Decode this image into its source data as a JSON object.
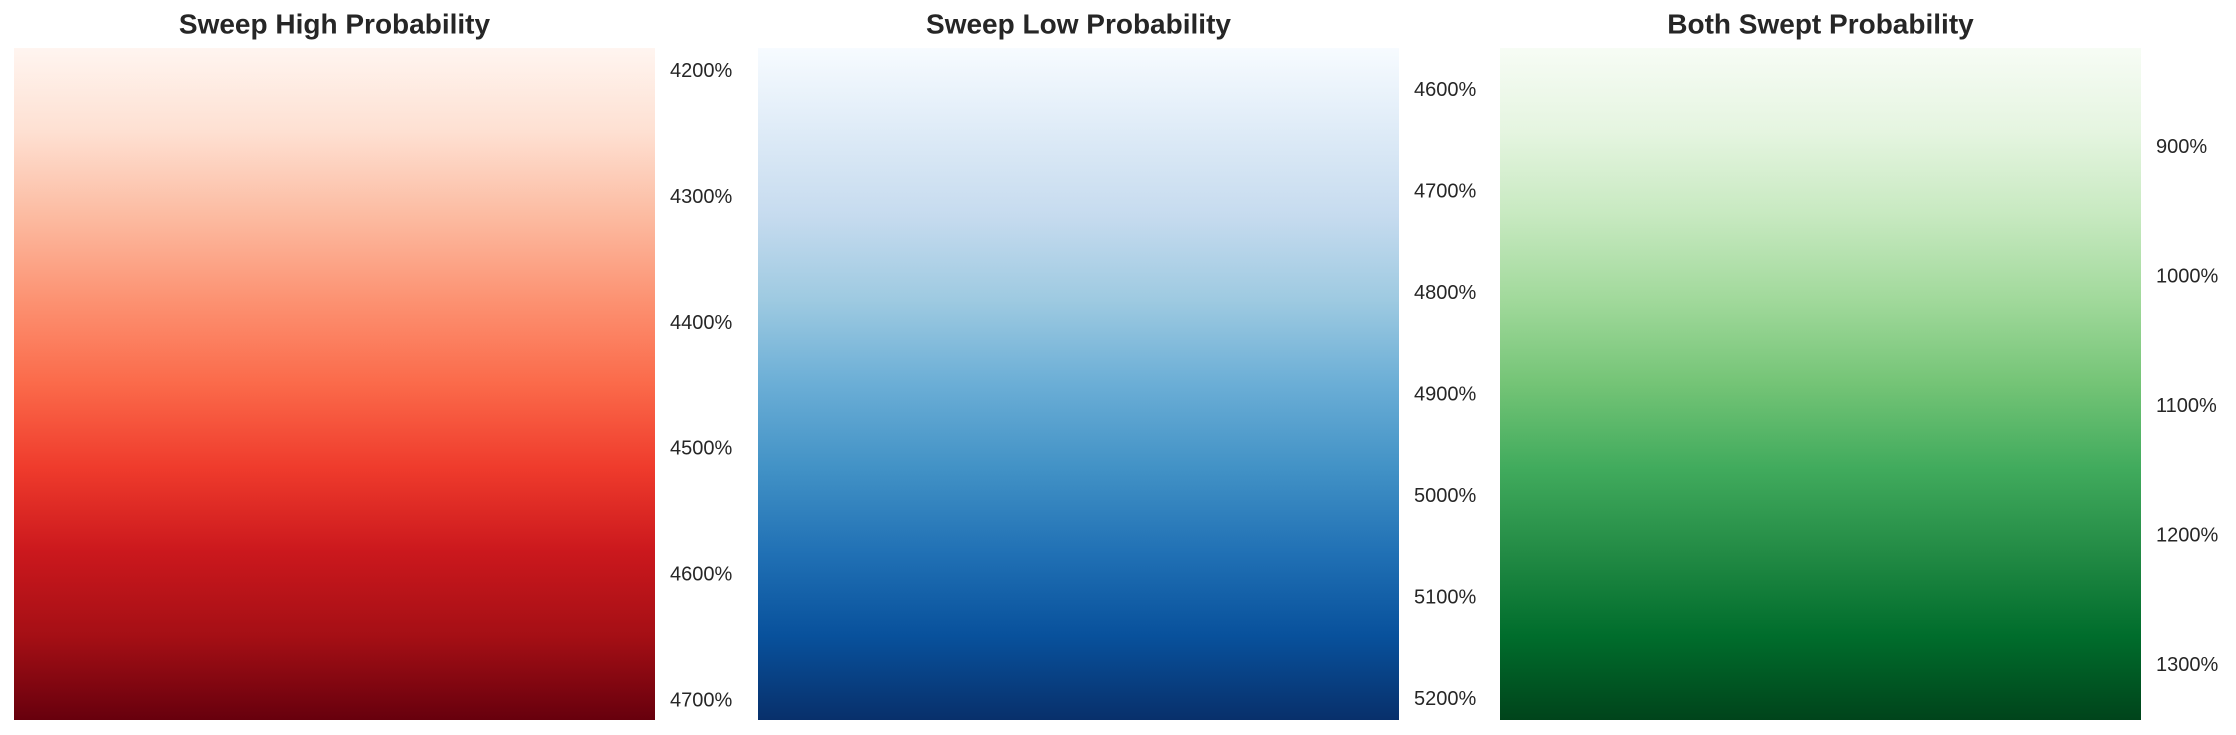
{
  "chart_data": [
    {
      "type": "colorbar",
      "title": "Sweep High Probability",
      "ylim": [
        4715,
        4181
      ],
      "yticks": [
        {
          "value": 4200,
          "label": "4200%"
        },
        {
          "value": 4300,
          "label": "4300%"
        },
        {
          "value": 4400,
          "label": "4400%"
        },
        {
          "value": 4500,
          "label": "4500%"
        },
        {
          "value": 4600,
          "label": "4600%"
        },
        {
          "value": 4700,
          "label": "4700%"
        }
      ],
      "colors": [
        "#fff5f0",
        "#fee0d2",
        "#fcbba1",
        "#fc9272",
        "#fb6a4a",
        "#ef3b2c",
        "#cb181d",
        "#a50f15",
        "#67000d"
      ]
    },
    {
      "type": "colorbar",
      "title": "Sweep Low Probability",
      "ylim": [
        5220,
        4558
      ],
      "yticks": [
        {
          "value": 4600,
          "label": "4600%"
        },
        {
          "value": 4700,
          "label": "4700%"
        },
        {
          "value": 4800,
          "label": "4800%"
        },
        {
          "value": 4900,
          "label": "4900%"
        },
        {
          "value": 5000,
          "label": "5000%"
        },
        {
          "value": 5100,
          "label": "5100%"
        },
        {
          "value": 5200,
          "label": "5200%"
        }
      ],
      "colors": [
        "#f7fbff",
        "#deebf7",
        "#c6dbef",
        "#9ecae1",
        "#6baed6",
        "#4292c6",
        "#2171b5",
        "#08519c",
        "#08306b"
      ]
    },
    {
      "type": "colorbar",
      "title": "Both Swept Probability",
      "ylim": [
        1342,
        823
      ],
      "yticks": [
        {
          "value": 900,
          "label": "900%"
        },
        {
          "value": 1000,
          "label": "1000%"
        },
        {
          "value": 1100,
          "label": "1100%"
        },
        {
          "value": 1200,
          "label": "1200%"
        },
        {
          "value": 1300,
          "label": "1300%"
        }
      ],
      "colors": [
        "#f7fcf5",
        "#e5f5e0",
        "#c7e9c0",
        "#a1d99b",
        "#74c476",
        "#41ab5d",
        "#238b45",
        "#006d2c",
        "#00441b"
      ]
    }
  ]
}
